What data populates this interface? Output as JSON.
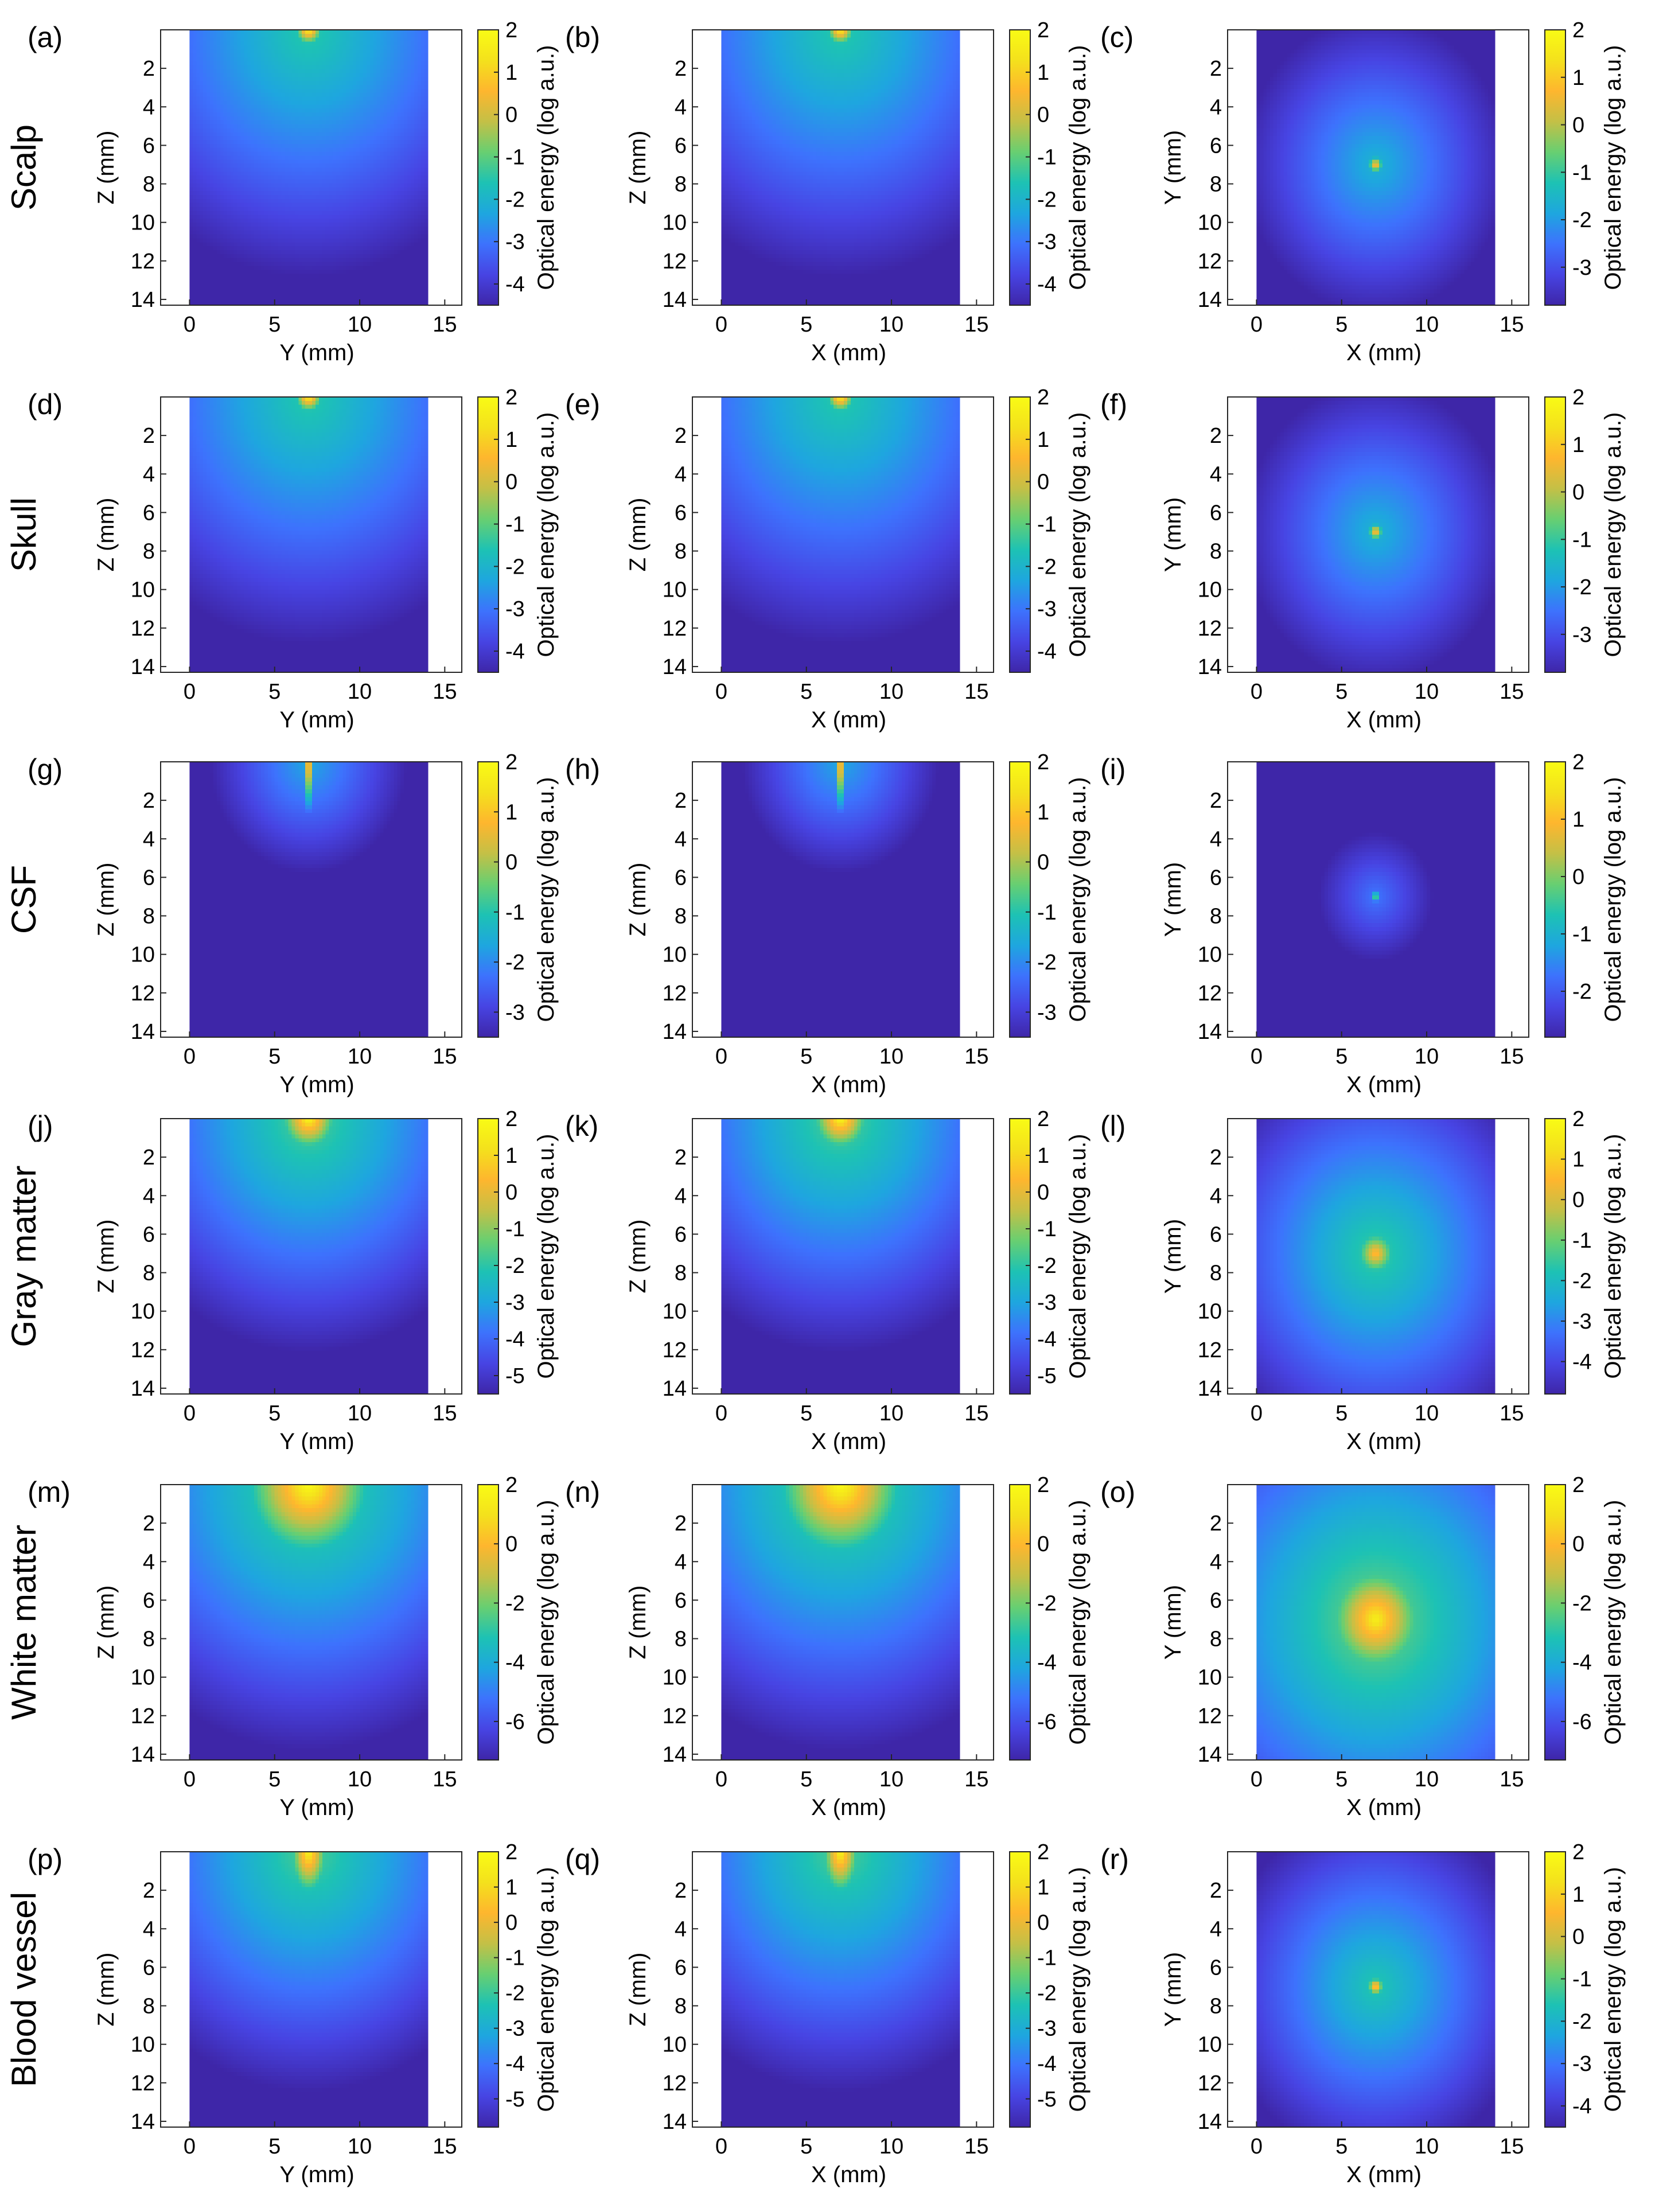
{
  "figure": {
    "row_labels": [
      "Scalp",
      "Skull",
      "CSF",
      "Gray matter",
      "White matter",
      "Blood vessel"
    ],
    "colorbar_label": "Optical energy (log a.u.)",
    "colormap": [
      "#3e26a8",
      "#4744e3",
      "#3d72fd",
      "#1ea6df",
      "#1dc2b4",
      "#68cf71",
      "#c4c046",
      "#feb62e",
      "#f4e11c",
      "#f9fb15"
    ],
    "data_background": "#3e26a8"
  },
  "chart_data": [
    {
      "type": "heatmap",
      "panel": "(a)",
      "tissue": "Scalp",
      "view": "side",
      "xlabel": "Y (mm)",
      "ylabel": "Z (mm)",
      "xlim": [
        -1.7,
        16
      ],
      "ylim": [
        0,
        14.3
      ],
      "xticks": [
        0,
        5,
        10,
        15
      ],
      "yticks": [
        2,
        4,
        6,
        8,
        10,
        12,
        14
      ],
      "data_x_range": [
        0,
        14
      ],
      "source": [
        7,
        0
      ],
      "colorbar": {
        "range": [
          -4.5,
          2
        ],
        "ticks": [
          2,
          1,
          0,
          -1,
          -2,
          -3,
          -4
        ]
      },
      "hotspot": {
        "peak": 1.8,
        "radius": 0.6,
        "elong": 1.0
      },
      "background": {
        "level": -1.4,
        "decay": 0.22
      }
    },
    {
      "type": "heatmap",
      "panel": "(b)",
      "tissue": "Scalp",
      "view": "side",
      "xlabel": "X (mm)",
      "ylabel": "Z (mm)",
      "xlim": [
        -1.7,
        16
      ],
      "ylim": [
        0,
        14.3
      ],
      "xticks": [
        0,
        5,
        10,
        15
      ],
      "yticks": [
        2,
        4,
        6,
        8,
        10,
        12,
        14
      ],
      "data_x_range": [
        0,
        14
      ],
      "source": [
        7,
        0
      ],
      "colorbar": {
        "range": [
          -4.5,
          2
        ],
        "ticks": [
          2,
          1,
          0,
          -1,
          -2,
          -3,
          -4
        ]
      },
      "hotspot": {
        "peak": 1.8,
        "radius": 0.6,
        "elong": 1.0
      },
      "background": {
        "level": -1.4,
        "decay": 0.22
      }
    },
    {
      "type": "heatmap",
      "panel": "(c)",
      "tissue": "Scalp",
      "view": "top",
      "xlabel": "X (mm)",
      "ylabel": "Y (mm)",
      "xlim": [
        -1.7,
        16
      ],
      "ylim": [
        0,
        14.3
      ],
      "xticks": [
        0,
        5,
        10,
        15
      ],
      "yticks": [
        2,
        4,
        6,
        8,
        10,
        12,
        14
      ],
      "data_x_range": [
        0,
        14
      ],
      "source": [
        7,
        7
      ],
      "colorbar": {
        "range": [
          -3.8,
          2
        ],
        "ticks": [
          2,
          1,
          0,
          -1,
          -2,
          -3
        ]
      },
      "hotspot": {
        "peak": 1.2,
        "radius": 0.35,
        "elong": 1.0
      },
      "background": {
        "level": -1.6,
        "decay": 0.26
      }
    },
    {
      "type": "heatmap",
      "panel": "(d)",
      "tissue": "Skull",
      "view": "side",
      "xlabel": "Y (mm)",
      "ylabel": "Z (mm)",
      "xlim": [
        -1.7,
        16
      ],
      "ylim": [
        0,
        14.3
      ],
      "xticks": [
        0,
        5,
        10,
        15
      ],
      "yticks": [
        2,
        4,
        6,
        8,
        10,
        12,
        14
      ],
      "data_x_range": [
        0,
        14
      ],
      "source": [
        7,
        0
      ],
      "colorbar": {
        "range": [
          -4.5,
          2
        ],
        "ticks": [
          2,
          1,
          0,
          -1,
          -2,
          -3,
          -4
        ]
      },
      "hotspot": {
        "peak": 1.8,
        "radius": 0.6,
        "elong": 1.0
      },
      "background": {
        "level": -1.4,
        "decay": 0.22
      }
    },
    {
      "type": "heatmap",
      "panel": "(e)",
      "tissue": "Skull",
      "view": "side",
      "xlabel": "X (mm)",
      "ylabel": "Z (mm)",
      "xlim": [
        -1.7,
        16
      ],
      "ylim": [
        0,
        14.3
      ],
      "xticks": [
        0,
        5,
        10,
        15
      ],
      "yticks": [
        2,
        4,
        6,
        8,
        10,
        12,
        14
      ],
      "data_x_range": [
        0,
        14
      ],
      "source": [
        7,
        0
      ],
      "colorbar": {
        "range": [
          -4.5,
          2
        ],
        "ticks": [
          2,
          1,
          0,
          -1,
          -2,
          -3,
          -4
        ]
      },
      "hotspot": {
        "peak": 1.8,
        "radius": 0.6,
        "elong": 1.0
      },
      "background": {
        "level": -1.4,
        "decay": 0.22
      }
    },
    {
      "type": "heatmap",
      "panel": "(f)",
      "tissue": "Skull",
      "view": "top",
      "xlabel": "X (mm)",
      "ylabel": "Y (mm)",
      "xlim": [
        -1.7,
        16
      ],
      "ylim": [
        0,
        14.3
      ],
      "xticks": [
        0,
        5,
        10,
        15
      ],
      "yticks": [
        2,
        4,
        6,
        8,
        10,
        12,
        14
      ],
      "data_x_range": [
        0,
        14
      ],
      "source": [
        7,
        7
      ],
      "colorbar": {
        "range": [
          -3.8,
          2
        ],
        "ticks": [
          2,
          1,
          0,
          -1,
          -2,
          -3
        ]
      },
      "hotspot": {
        "peak": 1.2,
        "radius": 0.35,
        "elong": 1.0
      },
      "background": {
        "level": -1.6,
        "decay": 0.26
      }
    },
    {
      "type": "heatmap",
      "panel": "(g)",
      "tissue": "CSF",
      "view": "side",
      "xlabel": "Y (mm)",
      "ylabel": "Z (mm)",
      "xlim": [
        -1.7,
        16
      ],
      "ylim": [
        0,
        14.3
      ],
      "xticks": [
        0,
        5,
        10,
        15
      ],
      "yticks": [
        2,
        4,
        6,
        8,
        10,
        12,
        14
      ],
      "data_x_range": [
        0,
        14
      ],
      "source": [
        7,
        0
      ],
      "colorbar": {
        "range": [
          -3.5,
          2
        ],
        "ticks": [
          2,
          1,
          0,
          -1,
          -2,
          -3
        ]
      },
      "hotspot": {
        "peak": 1.8,
        "radius": 0.25,
        "elong": 8.0
      },
      "background": {
        "level": -1.6,
        "decay": 0.3
      }
    },
    {
      "type": "heatmap",
      "panel": "(h)",
      "tissue": "CSF",
      "view": "side",
      "xlabel": "X (mm)",
      "ylabel": "Z (mm)",
      "xlim": [
        -1.7,
        16
      ],
      "ylim": [
        0,
        14.3
      ],
      "xticks": [
        0,
        5,
        10,
        15
      ],
      "yticks": [
        2,
        4,
        6,
        8,
        10,
        12,
        14
      ],
      "data_x_range": [
        0,
        14
      ],
      "source": [
        7,
        0
      ],
      "colorbar": {
        "range": [
          -3.5,
          2
        ],
        "ticks": [
          2,
          1,
          0,
          -1,
          -2,
          -3
        ]
      },
      "hotspot": {
        "peak": 1.8,
        "radius": 0.25,
        "elong": 8.0
      },
      "background": {
        "level": -1.6,
        "decay": 0.3
      }
    },
    {
      "type": "heatmap",
      "panel": "(i)",
      "tissue": "CSF",
      "view": "top",
      "xlabel": "X (mm)",
      "ylabel": "Y (mm)",
      "xlim": [
        -1.7,
        16
      ],
      "ylim": [
        0,
        14.3
      ],
      "xticks": [
        0,
        5,
        10,
        15
      ],
      "yticks": [
        2,
        4,
        6,
        8,
        10,
        12,
        14
      ],
      "data_x_range": [
        0,
        14
      ],
      "source": [
        7,
        7
      ],
      "colorbar": {
        "range": [
          -2.8,
          2
        ],
        "ticks": [
          2,
          1,
          0,
          -1,
          -2
        ]
      },
      "hotspot": {
        "peak": 0.2,
        "radius": 0.25,
        "elong": 1.0
      },
      "background": {
        "level": -1.7,
        "decay": 0.3
      }
    },
    {
      "type": "heatmap",
      "panel": "(j)",
      "tissue": "Gray matter",
      "view": "side",
      "xlabel": "Y (mm)",
      "ylabel": "Z (mm)",
      "xlim": [
        -1.7,
        16
      ],
      "ylim": [
        0,
        14.3
      ],
      "xticks": [
        0,
        5,
        10,
        15
      ],
      "yticks": [
        2,
        4,
        6,
        8,
        10,
        12,
        14
      ],
      "data_x_range": [
        0,
        14
      ],
      "source": [
        7,
        0
      ],
      "colorbar": {
        "range": [
          -5.5,
          2
        ],
        "ticks": [
          2,
          1,
          0,
          -1,
          -2,
          -3,
          -4,
          -5
        ]
      },
      "hotspot": {
        "peak": 1.8,
        "radius": 1.1,
        "elong": 1.0
      },
      "background": {
        "level": -1.5,
        "decay": 0.3
      }
    },
    {
      "type": "heatmap",
      "panel": "(k)",
      "tissue": "Gray matter",
      "view": "side",
      "xlabel": "X (mm)",
      "ylabel": "Z (mm)",
      "xlim": [
        -1.7,
        16
      ],
      "ylim": [
        0,
        14.3
      ],
      "xticks": [
        0,
        5,
        10,
        15
      ],
      "yticks": [
        2,
        4,
        6,
        8,
        10,
        12,
        14
      ],
      "data_x_range": [
        0,
        14
      ],
      "source": [
        7,
        0
      ],
      "colorbar": {
        "range": [
          -5.5,
          2
        ],
        "ticks": [
          2,
          1,
          0,
          -1,
          -2,
          -3,
          -4,
          -5
        ]
      },
      "hotspot": {
        "peak": 1.8,
        "radius": 1.1,
        "elong": 1.0
      },
      "background": {
        "level": -1.5,
        "decay": 0.3
      }
    },
    {
      "type": "heatmap",
      "panel": "(l)",
      "tissue": "Gray matter",
      "view": "top",
      "xlabel": "X (mm)",
      "ylabel": "Y (mm)",
      "xlim": [
        -1.7,
        16
      ],
      "ylim": [
        0,
        14.3
      ],
      "xticks": [
        0,
        5,
        10,
        15
      ],
      "yticks": [
        2,
        4,
        6,
        8,
        10,
        12,
        14
      ],
      "data_x_range": [
        0,
        14
      ],
      "source": [
        7,
        7
      ],
      "colorbar": {
        "range": [
          -4.8,
          2
        ],
        "ticks": [
          2,
          1,
          0,
          -1,
          -2,
          -3,
          -4
        ]
      },
      "hotspot": {
        "peak": 0.8,
        "radius": 0.7,
        "elong": 1.0
      },
      "background": {
        "level": -1.4,
        "decay": 0.3
      }
    },
    {
      "type": "heatmap",
      "panel": "(m)",
      "tissue": "White matter",
      "view": "side",
      "xlabel": "Y (mm)",
      "ylabel": "Z (mm)",
      "xlim": [
        -1.7,
        16
      ],
      "ylim": [
        0,
        14.3
      ],
      "xticks": [
        0,
        5,
        10,
        15
      ],
      "yticks": [
        2,
        4,
        6,
        8,
        10,
        12,
        14
      ],
      "data_x_range": [
        0,
        14
      ],
      "source": [
        7,
        0
      ],
      "colorbar": {
        "range": [
          -7.3,
          2
        ],
        "ticks": [
          2,
          0,
          -2,
          -4,
          -6
        ]
      },
      "hotspot": {
        "peak": 2.0,
        "radius": 2.3,
        "elong": 1.0
      },
      "background": {
        "level": -2.0,
        "decay": 0.35
      }
    },
    {
      "type": "heatmap",
      "panel": "(n)",
      "tissue": "White matter",
      "view": "side",
      "xlabel": "X (mm)",
      "ylabel": "Z (mm)",
      "xlim": [
        -1.7,
        16
      ],
      "ylim": [
        0,
        14.3
      ],
      "xticks": [
        0,
        5,
        10,
        15
      ],
      "yticks": [
        2,
        4,
        6,
        8,
        10,
        12,
        14
      ],
      "data_x_range": [
        0,
        14
      ],
      "source": [
        7,
        0
      ],
      "colorbar": {
        "range": [
          -7.3,
          2
        ],
        "ticks": [
          2,
          0,
          -2,
          -4,
          -6
        ]
      },
      "hotspot": {
        "peak": 2.0,
        "radius": 2.3,
        "elong": 1.0
      },
      "background": {
        "level": -2.0,
        "decay": 0.35
      }
    },
    {
      "type": "heatmap",
      "panel": "(o)",
      "tissue": "White matter",
      "view": "top",
      "xlabel": "X (mm)",
      "ylabel": "Y (mm)",
      "xlim": [
        -1.7,
        16
      ],
      "ylim": [
        0,
        14.3
      ],
      "xticks": [
        0,
        5,
        10,
        15
      ],
      "yticks": [
        2,
        4,
        6,
        8,
        10,
        12,
        14
      ],
      "data_x_range": [
        0,
        14
      ],
      "source": [
        7,
        7
      ],
      "colorbar": {
        "range": [
          -7.3,
          2
        ],
        "ticks": [
          2,
          0,
          -2,
          -4,
          -6
        ]
      },
      "hotspot": {
        "peak": 1.5,
        "radius": 1.6,
        "elong": 1.0
      },
      "background": {
        "level": -1.8,
        "decay": 0.35
      }
    },
    {
      "type": "heatmap",
      "panel": "(p)",
      "tissue": "Blood vessel",
      "view": "side",
      "xlabel": "Y (mm)",
      "ylabel": "Z (mm)",
      "xlim": [
        -1.7,
        16
      ],
      "ylim": [
        0,
        14.3
      ],
      "xticks": [
        0,
        5,
        10,
        15
      ],
      "yticks": [
        2,
        4,
        6,
        8,
        10,
        12,
        14
      ],
      "data_x_range": [
        0,
        14
      ],
      "source": [
        7,
        0
      ],
      "colorbar": {
        "range": [
          -5.8,
          2
        ],
        "ticks": [
          2,
          1,
          0,
          -1,
          -2,
          -3,
          -4,
          -5
        ]
      },
      "hotspot": {
        "peak": 1.8,
        "radius": 0.75,
        "elong": 2.0
      },
      "background": {
        "level": -1.7,
        "decay": 0.3
      }
    },
    {
      "type": "heatmap",
      "panel": "(q)",
      "tissue": "Blood vessel",
      "view": "side",
      "xlabel": "X (mm)",
      "ylabel": "Z (mm)",
      "xlim": [
        -1.7,
        16
      ],
      "ylim": [
        0,
        14.3
      ],
      "xticks": [
        0,
        5,
        10,
        15
      ],
      "yticks": [
        2,
        4,
        6,
        8,
        10,
        12,
        14
      ],
      "data_x_range": [
        0,
        14
      ],
      "source": [
        7,
        0
      ],
      "colorbar": {
        "range": [
          -5.8,
          2
        ],
        "ticks": [
          2,
          1,
          0,
          -1,
          -2,
          -3,
          -4,
          -5
        ]
      },
      "hotspot": {
        "peak": 1.8,
        "radius": 0.75,
        "elong": 2.0
      },
      "background": {
        "level": -1.7,
        "decay": 0.3
      }
    },
    {
      "type": "heatmap",
      "panel": "(r)",
      "tissue": "Blood vessel",
      "view": "top",
      "xlabel": "X (mm)",
      "ylabel": "Y (mm)",
      "xlim": [
        -1.7,
        16
      ],
      "ylim": [
        0,
        14.3
      ],
      "xticks": [
        0,
        5,
        10,
        15
      ],
      "yticks": [
        2,
        4,
        6,
        8,
        10,
        12,
        14
      ],
      "data_x_range": [
        0,
        14
      ],
      "source": [
        7,
        7
      ],
      "colorbar": {
        "range": [
          -4.5,
          2
        ],
        "ticks": [
          2,
          1,
          0,
          -1,
          -2,
          -3,
          -4
        ]
      },
      "hotspot": {
        "peak": 1.5,
        "radius": 0.35,
        "elong": 1.0
      },
      "background": {
        "level": -1.5,
        "decay": 0.3
      }
    }
  ]
}
